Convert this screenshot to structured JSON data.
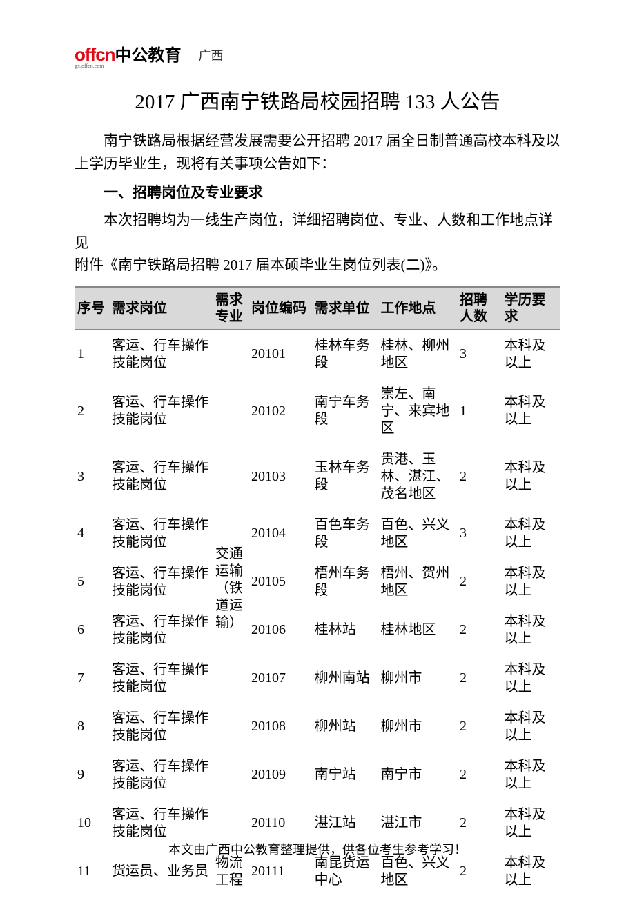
{
  "logo": {
    "brand_en": "offcn",
    "brand_cn": "中公教育",
    "sub": "gx.offcn.com",
    "region": "广西"
  },
  "title": "2017 广西南宁铁路局校园招聘 133 人公告",
  "intro": "南宁铁路局根据经营发展需要公开招聘 2017 届全日制普通高校本科及以上学历毕业生，现将有关事项公告如下：",
  "section1_head": "一、招聘岗位及专业要求",
  "section1_body_l1": "本次招聘均为一线生产岗位，详细招聘岗位、专业、人数和工作地点详见",
  "section1_body_l2": "附件《南宁铁路局招聘 2017 届本硕毕业生岗位列表(二)》。",
  "table": {
    "headers": {
      "idx": "序号",
      "pos": "需求岗位",
      "major": "需求专业",
      "code": "岗位编码",
      "unit": "需求单位",
      "loc": "工作地点",
      "num": "招聘人数",
      "edu": "学历要求"
    },
    "major_group_a": "交通运输（铁道运输）",
    "major_group_b": "物流工程",
    "rows": [
      {
        "idx": "1",
        "pos": "客运、行车操作技能岗位",
        "code": "20101",
        "unit": "桂林车务段",
        "loc": "桂林、柳州地区",
        "num": "3",
        "edu": "本科及以上"
      },
      {
        "idx": "2",
        "pos": "客运、行车操作技能岗位",
        "code": "20102",
        "unit": "南宁车务段",
        "loc": "崇左、南宁、来宾地区",
        "num": "1",
        "edu": "本科及以上"
      },
      {
        "idx": "3",
        "pos": "客运、行车操作技能岗位",
        "code": "20103",
        "unit": "玉林车务段",
        "loc": "贵港、玉林、湛江、茂名地区",
        "num": "2",
        "edu": "本科及以上"
      },
      {
        "idx": "4",
        "pos": "客运、行车操作技能岗位",
        "code": "20104",
        "unit": "百色车务段",
        "loc": "百色、兴义地区",
        "num": "3",
        "edu": "本科及以上"
      },
      {
        "idx": "5",
        "pos": "客运、行车操作技能岗位",
        "code": "20105",
        "unit": "梧州车务段",
        "loc": "梧州、贺州地区",
        "num": "2",
        "edu": "本科及以上"
      },
      {
        "idx": "6",
        "pos": "客运、行车操作技能岗位",
        "code": "20106",
        "unit": "桂林站",
        "loc": "桂林地区",
        "num": "2",
        "edu": "本科及以上"
      },
      {
        "idx": "7",
        "pos": "客运、行车操作技能岗位",
        "code": "20107",
        "unit": "柳州南站",
        "loc": "柳州市",
        "num": "2",
        "edu": "本科及以上"
      },
      {
        "idx": "8",
        "pos": "客运、行车操作技能岗位",
        "code": "20108",
        "unit": "柳州站",
        "loc": "柳州市",
        "num": "2",
        "edu": "本科及以上"
      },
      {
        "idx": "9",
        "pos": "客运、行车操作技能岗位",
        "code": "20109",
        "unit": "南宁站",
        "loc": "南宁市",
        "num": "2",
        "edu": "本科及以上"
      },
      {
        "idx": "10",
        "pos": "客运、行车操作技能岗位",
        "code": "20110",
        "unit": "湛江站",
        "loc": "湛江市",
        "num": "2",
        "edu": "本科及以上"
      },
      {
        "idx": "11",
        "pos": "货运员、业务员",
        "code": "20111",
        "unit": "南昆货运中心",
        "loc": "百色、兴义地区",
        "num": "2",
        "edu": "本科及以上"
      }
    ]
  },
  "footer": "本文由广西中公教育整理提供，供各位考生参考学习！",
  "colors": {
    "brand_red": "#e30613",
    "header_bg": "#d9d9d9",
    "text": "#000000"
  }
}
